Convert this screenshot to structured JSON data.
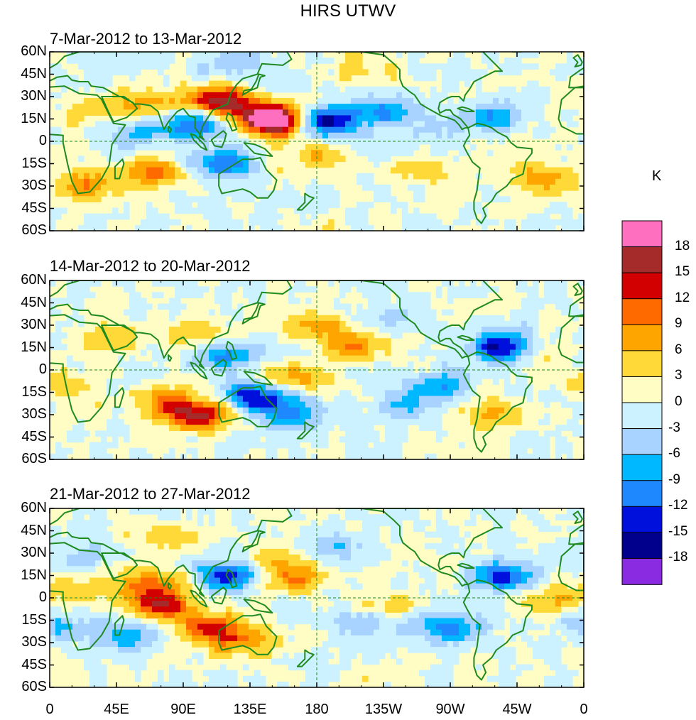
{
  "title": "HIRS UTWV",
  "panels": [
    {
      "title": "7-Mar-2012 to 13-Mar-2012"
    },
    {
      "title": "14-Mar-2012 to 20-Mar-2012"
    },
    {
      "title": "21-Mar-2012 to 27-Mar-2012"
    }
  ],
  "lat_ticks": [
    "60N",
    "45N",
    "30N",
    "15N",
    "0",
    "15S",
    "30S",
    "45S",
    "60S"
  ],
  "lon_ticks": [
    "0",
    "45E",
    "90E",
    "135E",
    "180",
    "135W",
    "90W",
    "45W",
    "0"
  ],
  "colorbar": {
    "unit": "K",
    "levels": [
      "18",
      "15",
      "12",
      "9",
      "6",
      "3",
      "0",
      "-3",
      "-6",
      "-9",
      "-12",
      "-15",
      "-18"
    ],
    "colors": [
      "#ff6fbf",
      "#a52a2a",
      "#d20000",
      "#ff6a00",
      "#ffa500",
      "#ffd938",
      "#fffcc4",
      "#cdf2ff",
      "#a8d2ff",
      "#00b8ff",
      "#1e88ff",
      "#0010dc",
      "#00008c",
      "#8a2be2"
    ]
  },
  "colors": {
    "coastline": "#1f8a1f",
    "frame": "#000000"
  },
  "panel_blobs": [
    [
      {
        "lon": 115,
        "lat": 27,
        "val": 16
      },
      {
        "lon": 155,
        "lat": 13,
        "val": 19
      },
      {
        "lon": 145,
        "lat": 18,
        "val": 10
      },
      {
        "lon": 70,
        "lat": 24,
        "val": 8
      },
      {
        "lon": 30,
        "lat": 22,
        "val": 5
      },
      {
        "lon": 180,
        "lat": -10,
        "val": 6
      },
      {
        "lon": 70,
        "lat": -20,
        "val": 10
      },
      {
        "lon": 25,
        "lat": -30,
        "val": 9
      },
      {
        "lon": 210,
        "lat": 45,
        "val": 5
      },
      {
        "lon": 330,
        "lat": -25,
        "val": 8
      },
      {
        "lon": 250,
        "lat": -20,
        "val": 5
      },
      {
        "lon": 95,
        "lat": 12,
        "val": -12
      },
      {
        "lon": 60,
        "lat": 5,
        "val": -6
      },
      {
        "lon": 185,
        "lat": 13,
        "val": -18
      },
      {
        "lon": 225,
        "lat": 20,
        "val": -10
      },
      {
        "lon": 300,
        "lat": 18,
        "val": -8
      },
      {
        "lon": 115,
        "lat": -15,
        "val": -12
      },
      {
        "lon": 260,
        "lat": 5,
        "val": -3
      },
      {
        "lon": 125,
        "lat": 50,
        "val": -5
      }
    ],
    [
      {
        "lon": 100,
        "lat": -30,
        "val": 16
      },
      {
        "lon": 80,
        "lat": -20,
        "val": 8
      },
      {
        "lon": 200,
        "lat": 15,
        "val": 13
      },
      {
        "lon": 180,
        "lat": 30,
        "val": 7
      },
      {
        "lon": 165,
        "lat": -5,
        "val": 7
      },
      {
        "lon": 40,
        "lat": 20,
        "val": 5
      },
      {
        "lon": 100,
        "lat": 25,
        "val": 6
      },
      {
        "lon": 10,
        "lat": -10,
        "val": 5
      },
      {
        "lon": 330,
        "lat": 10,
        "val": 5
      },
      {
        "lon": 300,
        "lat": -30,
        "val": 6
      },
      {
        "lon": 140,
        "lat": -18,
        "val": -15
      },
      {
        "lon": 120,
        "lat": 10,
        "val": -10
      },
      {
        "lon": 305,
        "lat": 15,
        "val": -16
      },
      {
        "lon": 260,
        "lat": -10,
        "val": -8
      },
      {
        "lon": 240,
        "lat": -25,
        "val": -6
      },
      {
        "lon": 190,
        "lat": 15,
        "val": -5
      },
      {
        "lon": 165,
        "lat": -30,
        "val": -8
      },
      {
        "lon": 230,
        "lat": 35,
        "val": -4
      }
    ],
    [
      {
        "lon": 75,
        "lat": -5,
        "val": 14
      },
      {
        "lon": 70,
        "lat": 10,
        "val": 10
      },
      {
        "lon": 110,
        "lat": -20,
        "val": 12
      },
      {
        "lon": 130,
        "lat": -30,
        "val": 8
      },
      {
        "lon": 150,
        "lat": 25,
        "val": 6
      },
      {
        "lon": 165,
        "lat": 12,
        "val": 8
      },
      {
        "lon": 225,
        "lat": -5,
        "val": 6
      },
      {
        "lon": 340,
        "lat": 0,
        "val": 7
      },
      {
        "lon": 20,
        "lat": 10,
        "val": 5
      },
      {
        "lon": 80,
        "lat": 40,
        "val": 5
      },
      {
        "lon": 120,
        "lat": 15,
        "val": -14
      },
      {
        "lon": 305,
        "lat": 15,
        "val": -14
      },
      {
        "lon": 270,
        "lat": -20,
        "val": -10
      },
      {
        "lon": 210,
        "lat": -15,
        "val": -7
      },
      {
        "lon": 55,
        "lat": -25,
        "val": -9
      },
      {
        "lon": 20,
        "lat": 25,
        "val": -6
      },
      {
        "lon": 195,
        "lat": 35,
        "val": -5
      },
      {
        "lon": 5,
        "lat": -20,
        "val": -6
      }
    ]
  ]
}
